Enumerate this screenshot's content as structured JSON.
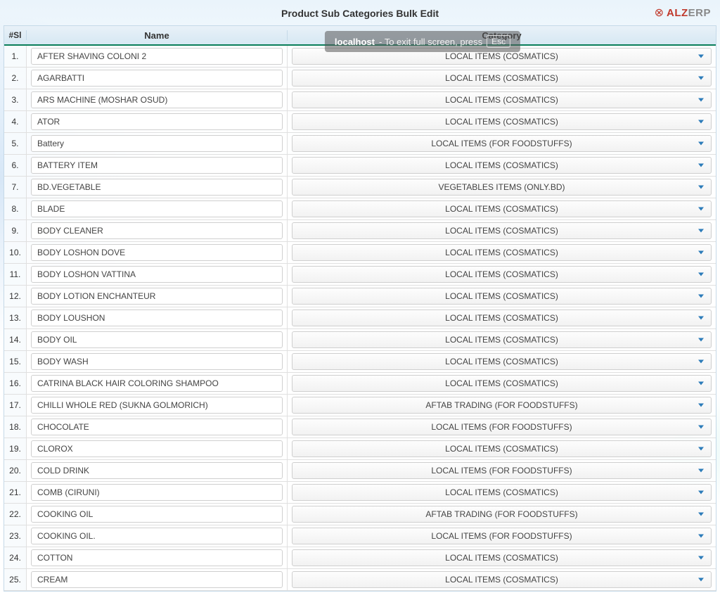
{
  "page_title": "Product Sub Categories Bulk Edit",
  "logo": {
    "icon": "⊗",
    "text_red": "ALZ",
    "text_gray": "ERP"
  },
  "fullscreen_banner": {
    "host": "localhost",
    "message": "- To exit full screen, press",
    "key": "Esc"
  },
  "table": {
    "headers": {
      "si": "#Sl",
      "name": "Name",
      "category": "Category"
    },
    "rows": [
      {
        "si": "1.",
        "name": "AFTER SHAVING COLONI 2",
        "category": "LOCAL ITEMS (COSMATICS)"
      },
      {
        "si": "2.",
        "name": "AGARBATTI",
        "category": "LOCAL ITEMS (COSMATICS)"
      },
      {
        "si": "3.",
        "name": "ARS MACHINE (MOSHAR OSUD)",
        "category": "LOCAL ITEMS (COSMATICS)"
      },
      {
        "si": "4.",
        "name": "ATOR",
        "category": "LOCAL ITEMS (COSMATICS)"
      },
      {
        "si": "5.",
        "name": "Battery",
        "category": "LOCAL ITEMS (FOR FOODSTUFFS)"
      },
      {
        "si": "6.",
        "name": "BATTERY ITEM",
        "category": "LOCAL ITEMS (COSMATICS)"
      },
      {
        "si": "7.",
        "name": "BD.VEGETABLE",
        "category": "VEGETABLES ITEMS (ONLY.BD)"
      },
      {
        "si": "8.",
        "name": "BLADE",
        "category": "LOCAL ITEMS (COSMATICS)"
      },
      {
        "si": "9.",
        "name": "BODY CLEANER",
        "category": "LOCAL ITEMS (COSMATICS)"
      },
      {
        "si": "10.",
        "name": "BODY LOSHON DOVE",
        "category": "LOCAL ITEMS (COSMATICS)"
      },
      {
        "si": "11.",
        "name": "BODY LOSHON VATTINA",
        "category": "LOCAL ITEMS (COSMATICS)"
      },
      {
        "si": "12.",
        "name": "BODY LOTION ENCHANTEUR",
        "category": "LOCAL ITEMS (COSMATICS)"
      },
      {
        "si": "13.",
        "name": "BODY LOUSHON",
        "category": "LOCAL ITEMS (COSMATICS)"
      },
      {
        "si": "14.",
        "name": "BODY OIL",
        "category": "LOCAL ITEMS (COSMATICS)"
      },
      {
        "si": "15.",
        "name": "BODY WASH",
        "category": "LOCAL ITEMS (COSMATICS)"
      },
      {
        "si": "16.",
        "name": "CATRINA BLACK HAIR COLORING SHAMPOO",
        "category": "LOCAL ITEMS (COSMATICS)"
      },
      {
        "si": "17.",
        "name": "CHILLI WHOLE RED (SUKNA GOLMORICH)",
        "category": "AFTAB TRADING (FOR FOODSTUFFS)"
      },
      {
        "si": "18.",
        "name": "CHOCOLATE",
        "category": "LOCAL ITEMS (FOR FOODSTUFFS)"
      },
      {
        "si": "19.",
        "name": "CLOROX",
        "category": "LOCAL ITEMS (COSMATICS)"
      },
      {
        "si": "20.",
        "name": "COLD DRINK",
        "category": "LOCAL ITEMS (FOR FOODSTUFFS)"
      },
      {
        "si": "21.",
        "name": "COMB (CIRUNI)",
        "category": "LOCAL ITEMS (COSMATICS)"
      },
      {
        "si": "22.",
        "name": "COOKING OIL",
        "category": "AFTAB TRADING (FOR FOODSTUFFS)"
      },
      {
        "si": "23.",
        "name": "COOKING OIL.",
        "category": "LOCAL ITEMS (FOR FOODSTUFFS)"
      },
      {
        "si": "24.",
        "name": "COTTON",
        "category": "LOCAL ITEMS (COSMATICS)"
      },
      {
        "si": "25.",
        "name": "CREAM",
        "category": "LOCAL ITEMS (COSMATICS)"
      }
    ]
  },
  "colors": {
    "header_border": "#0a7e5a",
    "dropdown_caret": "#2b7bb9",
    "logo_red": "#c0392b",
    "border": "#c5d9e8"
  }
}
